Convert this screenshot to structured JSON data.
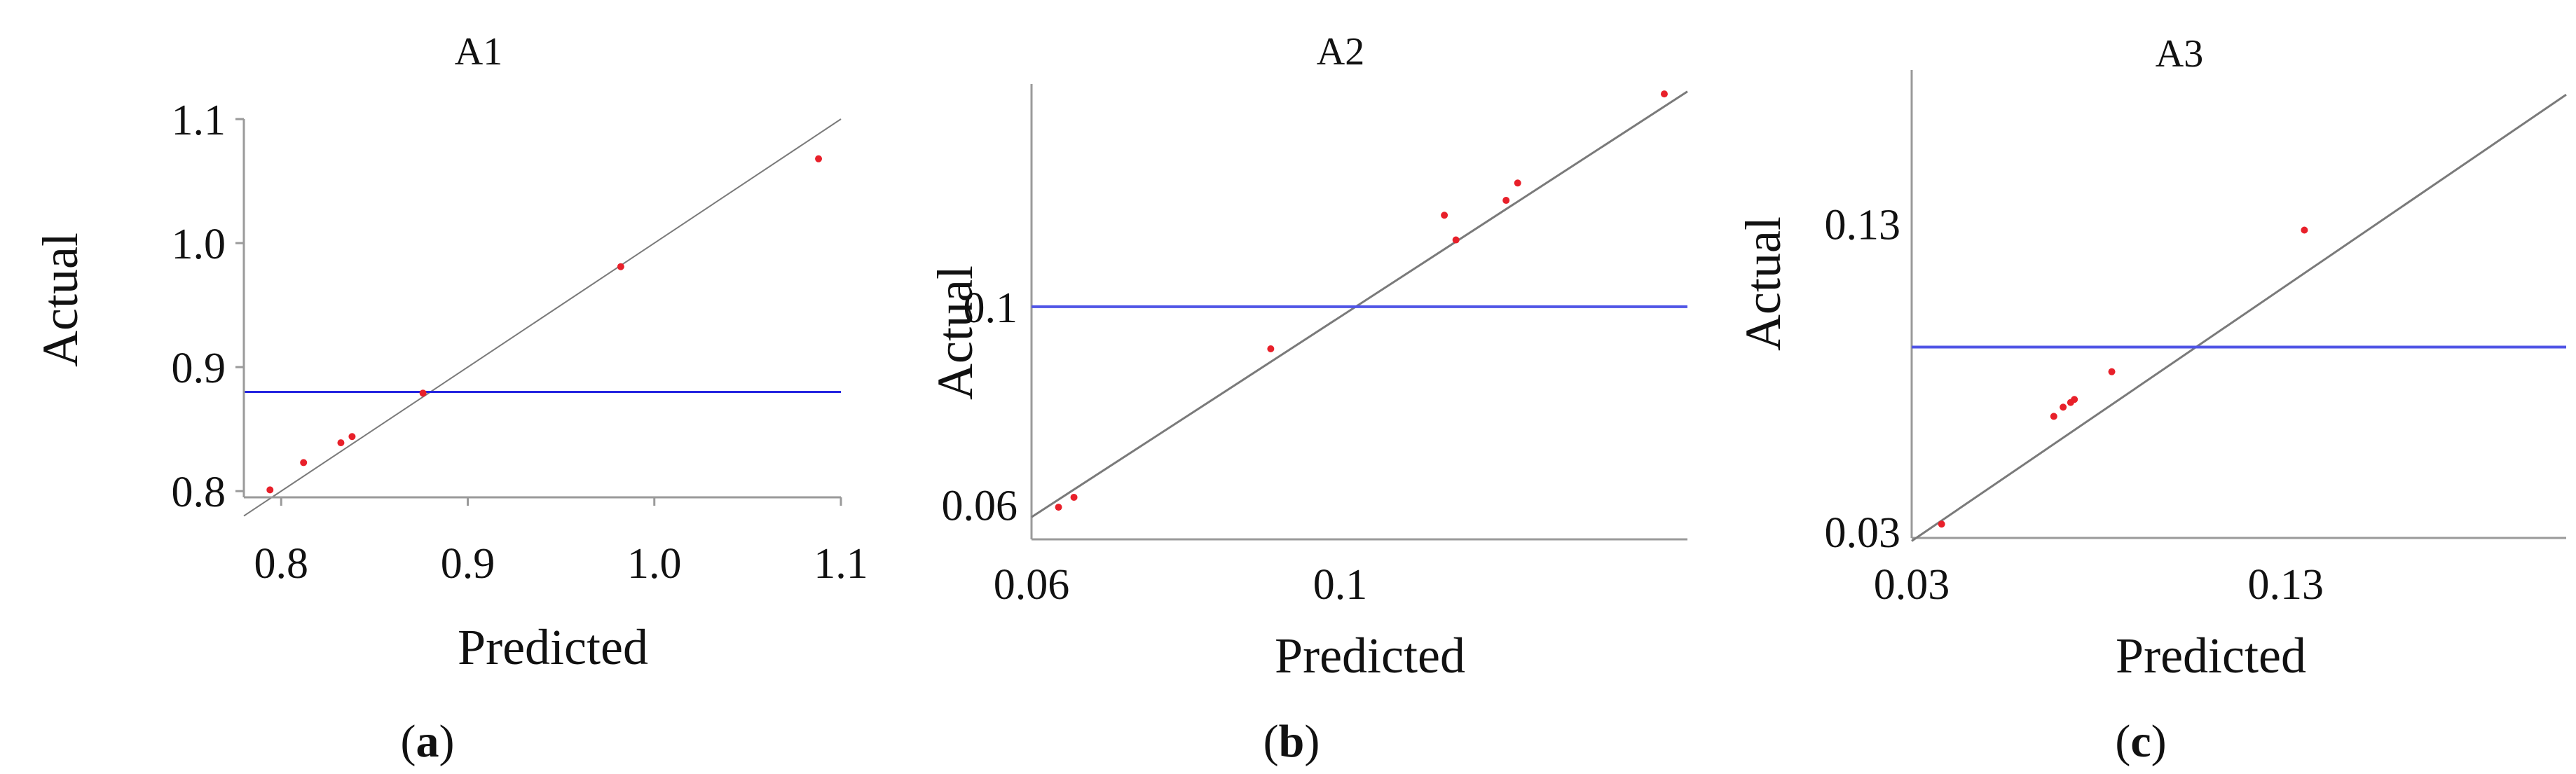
{
  "chart_data": [
    {
      "type": "scatter",
      "panel_label": "a",
      "title": "A1",
      "xlabel": "Predicted",
      "ylabel": "Actual",
      "xlim": [
        0.78,
        1.1
      ],
      "ylim": [
        0.795,
        1.1
      ],
      "xticks": [
        0.8,
        0.9,
        1.0,
        1.1
      ],
      "xtick_labels": [
        "0.8",
        "0.9",
        "1.0",
        "1.1"
      ],
      "yticks": [
        0.8,
        0.9,
        1.0,
        1.1
      ],
      "ytick_labels": [
        "0.8",
        "0.9",
        "1.0",
        "1.1"
      ],
      "points": {
        "x": [
          0.794,
          0.812,
          0.832,
          0.838,
          0.876,
          0.982,
          1.088
        ],
        "y": [
          0.801,
          0.823,
          0.839,
          0.844,
          0.879,
          0.981,
          1.068
        ]
      },
      "reference_line": {
        "x": [
          0.78,
          1.1
        ],
        "y": [
          0.78,
          1.1
        ]
      },
      "horizontal_line_y": 0.88,
      "colors": {
        "points": "#e8202a",
        "reference_line": "#7a7a7a",
        "horizontal_line": "#2424e0"
      },
      "grid": false,
      "legend": "none"
    },
    {
      "type": "scatter",
      "panel_label": "b",
      "title": "A2",
      "xlabel": "Predicted",
      "ylabel": "Actual",
      "xlim": [
        0.06,
        0.145
      ],
      "ylim": [
        0.053,
        0.145
      ],
      "xticks": [
        0.06,
        0.1
      ],
      "xtick_labels": [
        "0.06",
        "0.1"
      ],
      "yticks": [
        0.06,
        0.1
      ],
      "ytick_labels": [
        "0.06",
        "0.1"
      ],
      "points": {
        "x": [
          0.0635,
          0.0655,
          0.091,
          0.1135,
          0.115,
          0.1215,
          0.123,
          0.142
        ],
        "y": [
          0.0595,
          0.0615,
          0.0915,
          0.1185,
          0.1135,
          0.1215,
          0.125,
          0.143
        ]
      },
      "reference_line": {
        "x": [
          0.06,
          0.145
        ],
        "y": [
          0.0575,
          0.1435
        ]
      },
      "horizontal_line_y": 0.1,
      "colors": {
        "points": "#e8202a",
        "reference_line": "#7a7a7a",
        "horizontal_line": "#4f54e6"
      },
      "grid": false,
      "legend": "none"
    },
    {
      "type": "scatter",
      "panel_label": "c",
      "title": "A3",
      "xlabel": "Predicted",
      "ylabel": "Actual",
      "xlim": [
        0.03,
        0.205
      ],
      "ylim": [
        0.028,
        0.18
      ],
      "xticks": [
        0.03,
        0.13
      ],
      "xtick_labels": [
        "0.03",
        "0.13"
      ],
      "yticks": [
        0.03,
        0.13
      ],
      "ytick_labels": [
        "0.03",
        "0.13"
      ],
      "points": {
        "x": [
          0.038,
          0.068,
          0.0705,
          0.0725,
          0.0735,
          0.0835,
          0.135
        ],
        "y": [
          0.0325,
          0.0675,
          0.0705,
          0.072,
          0.073,
          0.082,
          0.128
        ]
      },
      "reference_line": {
        "x": [
          0.03,
          0.205
        ],
        "y": [
          0.027,
          0.172
        ]
      },
      "horizontal_line_y": 0.09,
      "colors": {
        "points": "#e8202a",
        "reference_line": "#7a7a7a",
        "horizontal_line": "#4f54e6"
      },
      "grid": false,
      "legend": "none"
    }
  ]
}
